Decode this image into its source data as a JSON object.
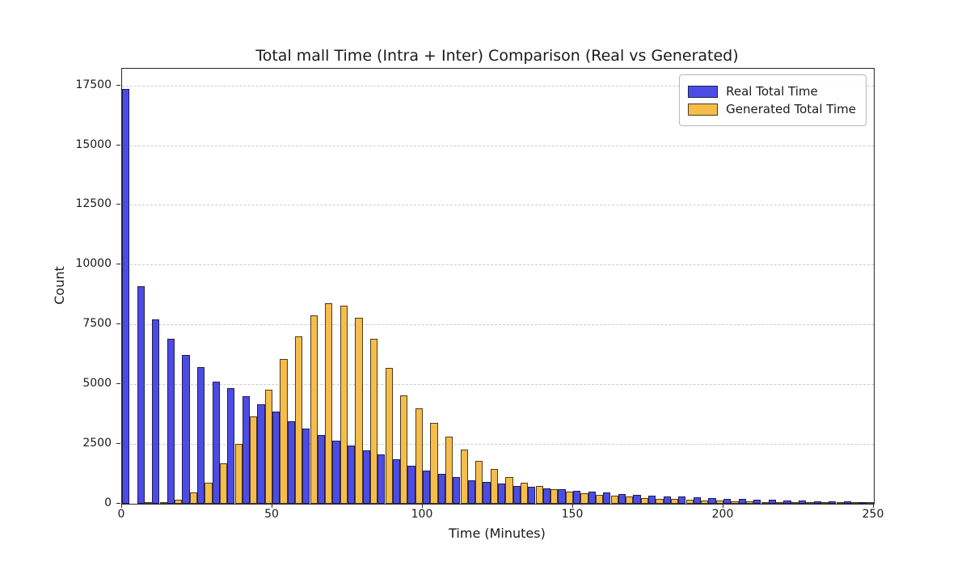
{
  "figure": {
    "title": "Total mall Time (Intra + Inter) Comparison (Real vs Generated)"
  },
  "chart_data": {
    "type": "bar",
    "subtype": "histogram-grouped",
    "title": "Total mall Time (Intra + Inter) Comparison (Real vs Generated)",
    "xlabel": "Time (Minutes)",
    "ylabel": "Count",
    "xlim": [
      0,
      250
    ],
    "ylim": [
      0,
      18200
    ],
    "xticks": [
      0,
      50,
      100,
      150,
      200,
      250
    ],
    "yticks": [
      0,
      2500,
      5000,
      7500,
      10000,
      12500,
      15000,
      17500
    ],
    "grid": {
      "axis": "y",
      "style": "dashed",
      "color": "#cccccc"
    },
    "bin_width_minutes": 5,
    "bin_starts": [
      0,
      5,
      10,
      15,
      20,
      25,
      30,
      35,
      40,
      45,
      50,
      55,
      60,
      65,
      70,
      75,
      80,
      85,
      90,
      95,
      100,
      105,
      110,
      115,
      120,
      125,
      130,
      135,
      140,
      145,
      150,
      155,
      160,
      165,
      170,
      175,
      180,
      185,
      190,
      195,
      200,
      205,
      210,
      215,
      220,
      225,
      230,
      235,
      240,
      245
    ],
    "series": [
      {
        "name": "Real Total Time",
        "color": "#4D4BE6",
        "edge_color": "#1f1f4e",
        "values": [
          17350,
          9100,
          7700,
          6890,
          6240,
          5730,
          5100,
          4830,
          4490,
          4160,
          3850,
          3450,
          3150,
          2870,
          2650,
          2450,
          2250,
          2050,
          1850,
          1600,
          1400,
          1250,
          1100,
          980,
          900,
          830,
          760,
          700,
          650,
          600,
          550,
          500,
          460,
          420,
          385,
          350,
          320,
          295,
          270,
          245,
          220,
          200,
          180,
          160,
          145,
          130,
          115,
          100,
          90,
          80
        ]
      },
      {
        "name": "Generated Total Time",
        "color": "#F6BD4B",
        "edge_color": "#4a3c20",
        "values": [
          0,
          10,
          40,
          170,
          480,
          890,
          1680,
          2500,
          3670,
          4770,
          6050,
          7000,
          7870,
          8390,
          8280,
          7780,
          6900,
          5700,
          4550,
          4000,
          3400,
          2800,
          2270,
          1800,
          1450,
          1100,
          890,
          740,
          620,
          520,
          440,
          380,
          330,
          290,
          250,
          220,
          190,
          165,
          145,
          125,
          110,
          95,
          85,
          75,
          65,
          58,
          50,
          45,
          40,
          35
        ]
      }
    ],
    "legend": {
      "position": "upper-right",
      "items": [
        "Real Total Time",
        "Generated Total Time"
      ]
    }
  }
}
